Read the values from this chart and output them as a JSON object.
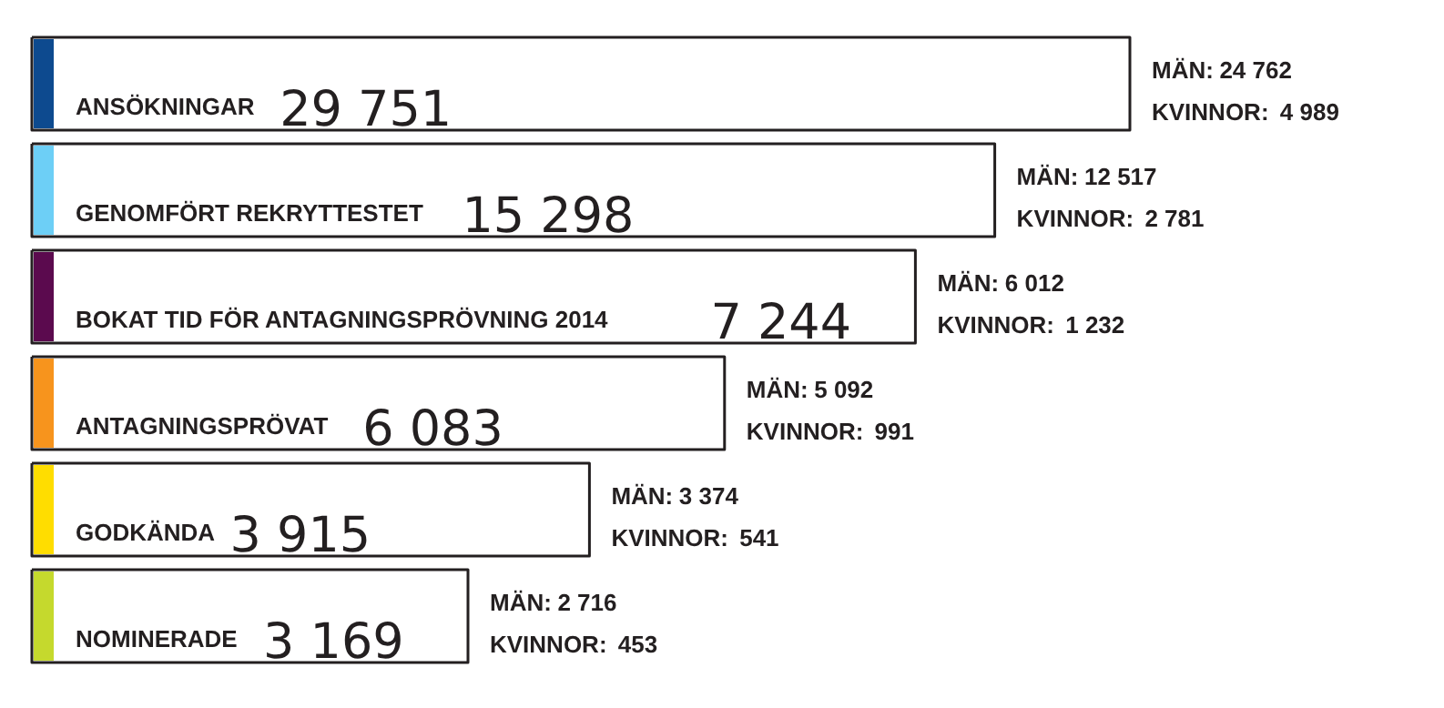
{
  "chart_data": {
    "type": "other",
    "categories": [
      "ANSÖKNINGAR",
      "GENOMFÖRT REKRYTTESTET",
      "BOKAT TID FÖR ANTAGNINGSPRÖVNING 2014",
      "ANTAGNINGSPRÖVAT",
      "GODKÄNDA",
      "NOMINERADE"
    ],
    "values": [
      29751,
      15298,
      7244,
      6083,
      3915,
      3169
    ],
    "colors": [
      "#0d4a8f",
      "#6dcff6",
      "#5b0a4e",
      "#f7941d",
      "#ffdd00",
      "#c5d92d"
    ],
    "series": [
      {
        "name": "MÄN:",
        "values": [
          24762,
          12517,
          6012,
          5092,
          3374,
          2716
        ]
      },
      {
        "name": "KVINNOR:",
        "values": [
          4989,
          2781,
          1232,
          991,
          541,
          453
        ]
      }
    ],
    "data_labels": true
  }
}
